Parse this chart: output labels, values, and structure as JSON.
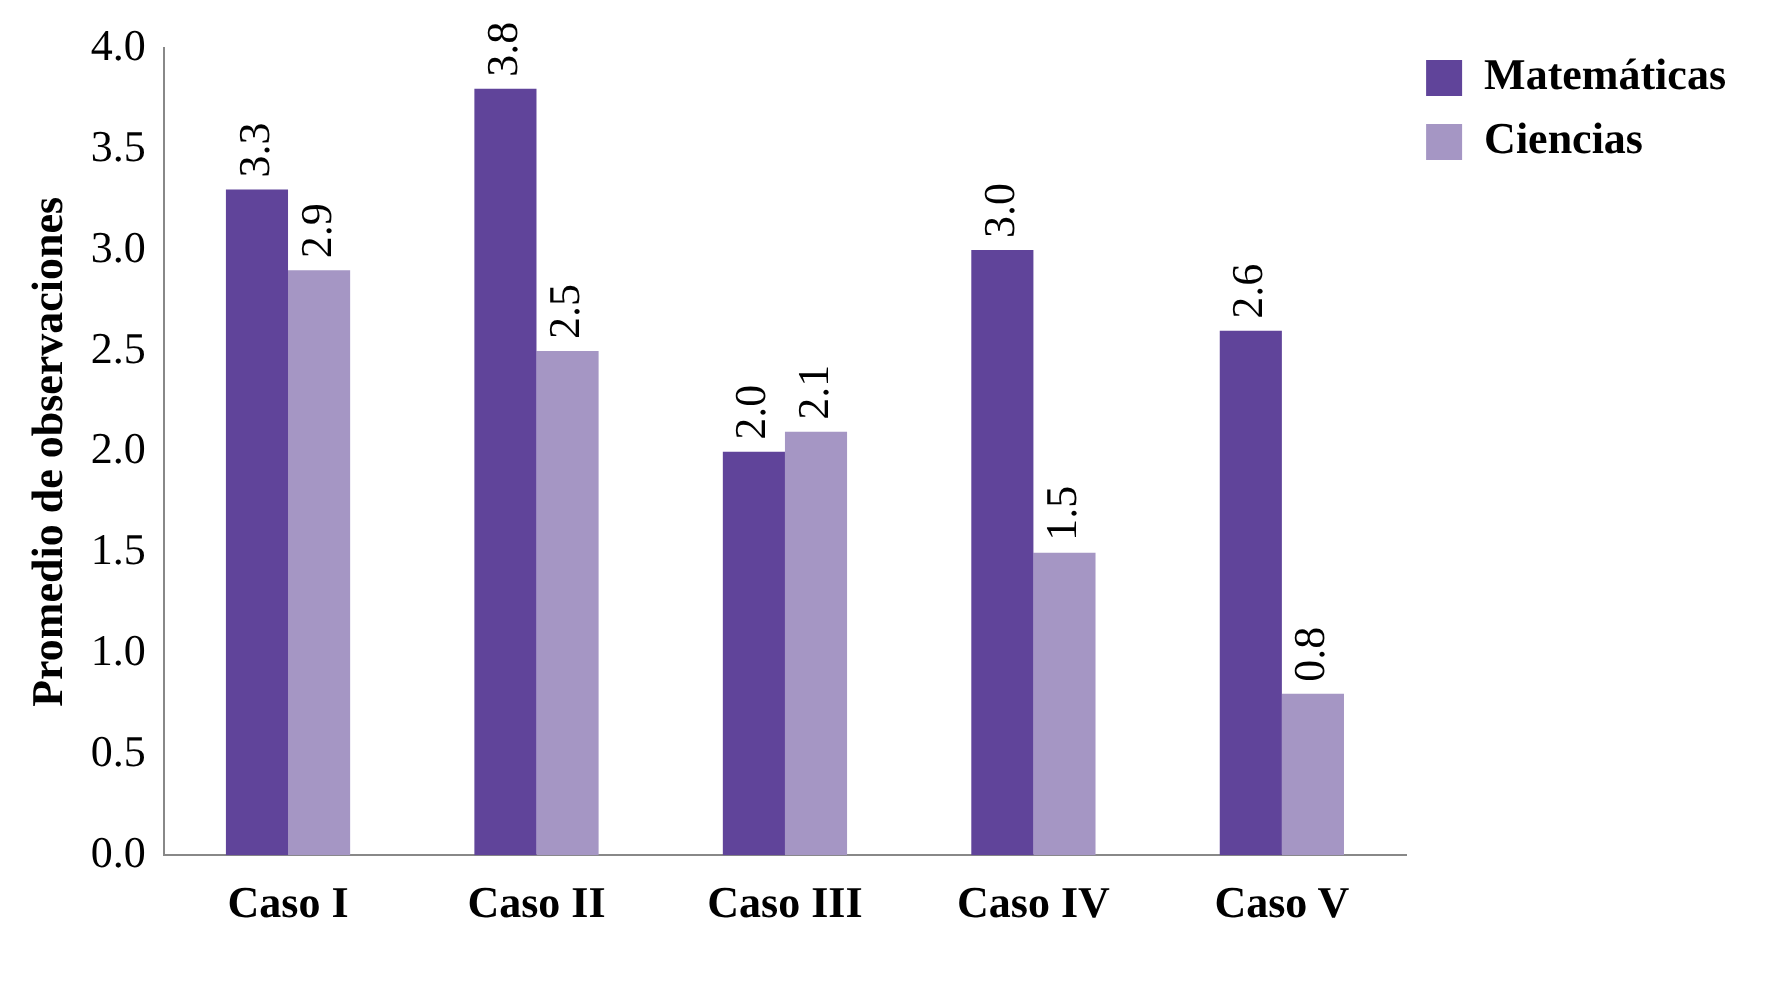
{
  "chart_data": {
    "type": "bar",
    "ylabel": "Promedio de observaciones",
    "categories": [
      "Caso I",
      "Caso II",
      "Caso III",
      "Caso IV",
      "Caso V"
    ],
    "series": [
      {
        "name": "Matemáticas",
        "color": "#60449a",
        "values": [
          3.3,
          3.8,
          2.0,
          3.0,
          2.6
        ],
        "value_labels": [
          "3.3",
          "3.8",
          "2.0",
          "3.0",
          "2.6"
        ]
      },
      {
        "name": "Ciencias",
        "color": "#a596c4",
        "values": [
          2.9,
          2.5,
          2.1,
          1.5,
          0.8
        ],
        "value_labels": [
          "2.9",
          "2.5",
          "2.1",
          "1.5",
          "0.8"
        ]
      }
    ],
    "ylim": [
      0,
      4
    ],
    "yticks": [
      {
        "value": 0,
        "label": "0.0"
      },
      {
        "value": 0.5,
        "label": "0.5"
      },
      {
        "value": 1,
        "label": "1.0"
      },
      {
        "value": 1.5,
        "label": "1.5"
      },
      {
        "value": 2,
        "label": "2.0"
      },
      {
        "value": 2.5,
        "label": "2.5"
      },
      {
        "value": 3,
        "label": "3.0"
      },
      {
        "value": 3.5,
        "label": "3.5"
      },
      {
        "value": 4,
        "label": "4.0"
      }
    ],
    "grid": false,
    "legend": "top right"
  }
}
